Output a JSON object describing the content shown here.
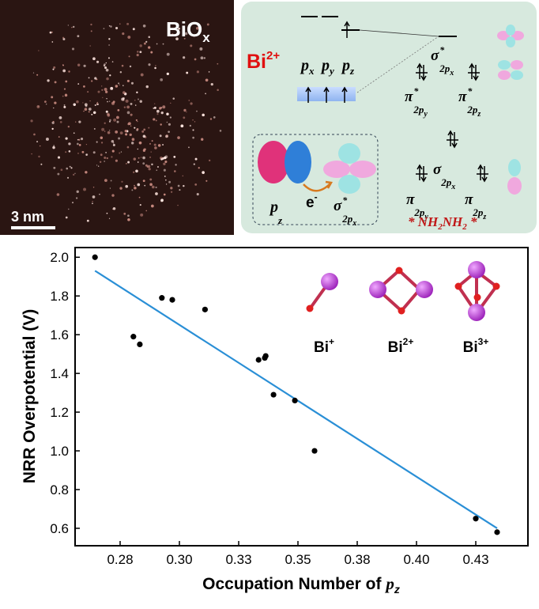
{
  "micrograph": {
    "label": "BiO",
    "label_sub": "x",
    "scale_bar": "3 nm"
  },
  "orbital_diagram": {
    "ion": "Bi",
    "ion_charge": "2+",
    "p_orbitals": [
      {
        "base": "p",
        "sub": "x"
      },
      {
        "base": "p",
        "sub": "y"
      },
      {
        "base": "p",
        "sub": "z"
      }
    ],
    "mo_top": [
      {
        "base": "σ",
        "sup": "*",
        "sub": "2p",
        "subsub": "x"
      },
      {
        "base": "π",
        "sup": "*",
        "sub": "2p",
        "subsub": "y"
      },
      {
        "base": "π",
        "sup": "*",
        "sub": "2p",
        "subsub": "z"
      }
    ],
    "inset": {
      "orbital": {
        "base": "p",
        "sub": "z"
      },
      "electron": "e",
      "electron_charge": "-",
      "target": {
        "base": "σ",
        "sup": "*",
        "sub": "2p",
        "subsub": "x"
      }
    },
    "mo_bottom": [
      {
        "base": "σ",
        "sub": "2p",
        "subsub": "x"
      },
      {
        "base": "π",
        "sub": "2p",
        "subsub": "y"
      },
      {
        "base": "π",
        "sub": "2p",
        "subsub": "z"
      }
    ],
    "molecule": [
      {
        "base": "* NH",
        "sub": "2"
      },
      {
        "base": "NH",
        "sub": "2"
      },
      {
        "base": " *"
      }
    ]
  },
  "chart_data": {
    "type": "scatter",
    "x_label": "Occupation Number of ",
    "x_label_var": "p",
    "x_label_var_sub": "z",
    "y_label": "NRR Overpotential (V)",
    "x": [
      0.2644,
      0.2806,
      0.2833,
      0.2926,
      0.297,
      0.3108,
      0.3334,
      0.336,
      0.3364,
      0.3397,
      0.3487,
      0.357,
      0.425,
      0.434
    ],
    "values": [
      2.0,
      1.59,
      1.55,
      1.79,
      1.78,
      1.73,
      1.47,
      1.48,
      1.49,
      1.29,
      1.26,
      1.0,
      0.65,
      0.58
    ],
    "color": "#000000",
    "fit": {
      "x": [
        0.2644,
        0.434
      ],
      "values": [
        1.93,
        0.6
      ],
      "color": "#2a8fd6"
    },
    "xlim": [
      0.256,
      0.447
    ],
    "ylim": [
      0.51,
      2.05
    ],
    "xticks": [
      {
        "value": 0.275,
        "label": "0.28"
      },
      {
        "value": 0.3,
        "label": "0.30"
      },
      {
        "value": 0.325,
        "label": "0.33"
      },
      {
        "value": 0.35,
        "label": "0.35"
      },
      {
        "value": 0.375,
        "label": "0.38"
      },
      {
        "value": 0.4,
        "label": "0.40"
      },
      {
        "value": 0.425,
        "label": "0.43"
      }
    ],
    "yticks": [
      0.6,
      0.8,
      {
        "value": 1.0,
        "label": "1.0"
      },
      1.2,
      1.4,
      1.6,
      1.8,
      {
        "value": 2.0,
        "label": "2.0"
      }
    ],
    "structures": [
      {
        "name": "Bi",
        "charge": "+"
      },
      {
        "name": "Bi",
        "charge": "2+"
      },
      {
        "name": "Bi",
        "charge": "3+"
      }
    ]
  }
}
